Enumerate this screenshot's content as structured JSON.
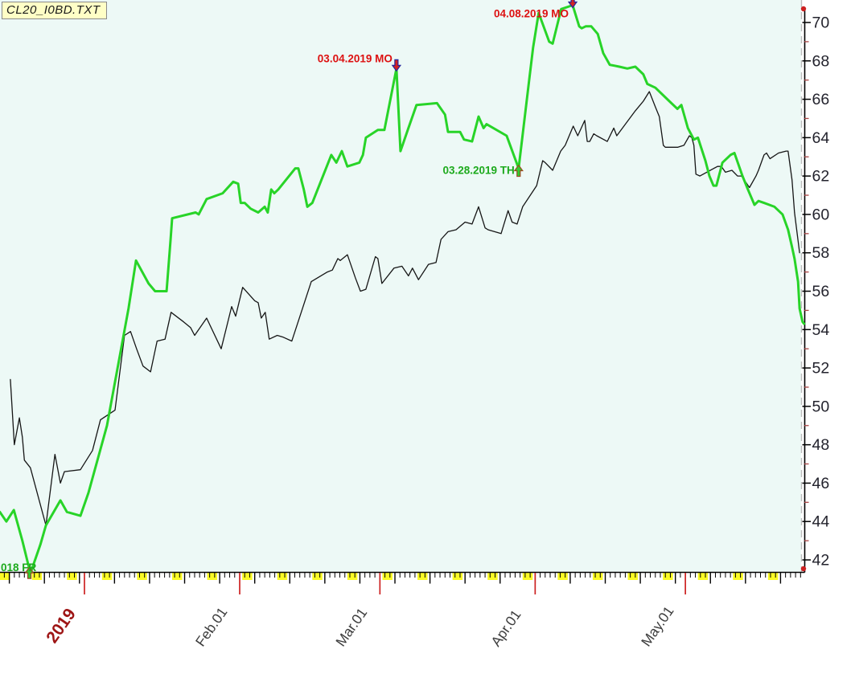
{
  "title": "CL20_I0BD.TXT",
  "colors": {
    "plot_bg": "#edf9f6",
    "outer_bg": "#ffffff",
    "seasonal_line": "#28d428",
    "price_line": "#161616",
    "axis": "#000000",
    "minor_tick": "#aa4444",
    "month_tick": "#cc2222",
    "weekend_block": "#fbfb25",
    "year_label": "#9e1515",
    "month_label": "#3d3d3d",
    "y_label": "#23232d",
    "peak_annotation": "#dd1111",
    "trough_annotation": "#1daa1d",
    "marker_peak_fill": "#d42222",
    "marker_peak_stroke": "#26269c",
    "marker_trough_fill": "#30cc30",
    "marker_trough_stroke": "#9a4a20",
    "corner_dot": "#cc2020",
    "dashed_guide": "#bdbdbd"
  },
  "chart_data": {
    "type": "line",
    "title": "CL20_I0BD.TXT",
    "xlabel": "",
    "ylabel": "",
    "x_unit": "days from 2019-01-01",
    "xlim": [
      -17,
      144
    ],
    "ylim": [
      41.3,
      71.2
    ],
    "grid": false,
    "legend": "none",
    "y_axis_side": "right",
    "y_major_ticks": [
      42,
      44,
      46,
      48,
      50,
      52,
      54,
      56,
      58,
      60,
      62,
      64,
      66,
      68,
      70
    ],
    "y_minor_ticks": [
      43,
      45,
      47,
      49,
      51,
      53,
      55,
      57,
      59,
      61,
      63,
      65,
      67,
      69
    ],
    "x_month_ticks": [
      {
        "label": "2019",
        "d": 0,
        "kind": "year"
      },
      {
        "label": "Feb.01",
        "d": 31,
        "kind": "month"
      },
      {
        "label": "Mar.01",
        "d": 59,
        "kind": "month"
      },
      {
        "label": "Apr.01",
        "d": 90,
        "kind": "month"
      },
      {
        "label": "May.01",
        "d": 120,
        "kind": "month"
      }
    ],
    "series": [
      {
        "name": "price-black",
        "color_key": "price_line",
        "width": 1.3,
        "points": [
          [
            -14.8,
            51.4
          ],
          [
            -14.0,
            48.0
          ],
          [
            -13.0,
            49.4
          ],
          [
            -12.4,
            48.4
          ],
          [
            -12.0,
            47.2
          ],
          [
            -10.8,
            46.8
          ],
          [
            -7.7,
            43.8
          ],
          [
            -5.9,
            47.5
          ],
          [
            -4.8,
            46.0
          ],
          [
            -4.0,
            46.6
          ],
          [
            -0.8,
            46.7
          ],
          [
            1.6,
            47.7
          ],
          [
            3.2,
            49.3
          ],
          [
            6.1,
            49.8
          ],
          [
            8.0,
            53.7
          ],
          [
            9.2,
            53.9
          ],
          [
            10.4,
            53.0
          ],
          [
            11.7,
            52.1
          ],
          [
            13.2,
            51.8
          ],
          [
            14.5,
            53.4
          ],
          [
            16.1,
            53.5
          ],
          [
            17.3,
            54.9
          ],
          [
            19.8,
            54.4
          ],
          [
            21.2,
            54.1
          ],
          [
            22.0,
            53.7
          ],
          [
            24.4,
            54.6
          ],
          [
            27.3,
            53.0
          ],
          [
            29.4,
            55.2
          ],
          [
            30.2,
            54.7
          ],
          [
            31.6,
            56.2
          ],
          [
            34.0,
            55.5
          ],
          [
            34.7,
            55.4
          ],
          [
            35.3,
            54.6
          ],
          [
            36.1,
            54.9
          ],
          [
            36.9,
            53.5
          ],
          [
            38.5,
            53.7
          ],
          [
            39.7,
            53.6
          ],
          [
            41.4,
            53.4
          ],
          [
            45.3,
            56.5
          ],
          [
            48.5,
            57.0
          ],
          [
            49.5,
            57.1
          ],
          [
            50.6,
            57.7
          ],
          [
            51.1,
            57.6
          ],
          [
            52.5,
            57.9
          ],
          [
            54.1,
            56.7
          ],
          [
            55.1,
            56.0
          ],
          [
            56.2,
            56.1
          ],
          [
            58.1,
            57.8
          ],
          [
            58.6,
            57.7
          ],
          [
            59.4,
            56.4
          ],
          [
            61.8,
            57.2
          ],
          [
            63.4,
            57.3
          ],
          [
            64.7,
            56.8
          ],
          [
            65.5,
            57.2
          ],
          [
            66.7,
            56.6
          ],
          [
            68.7,
            57.4
          ],
          [
            70.2,
            57.5
          ],
          [
            71.2,
            58.7
          ],
          [
            72.6,
            59.1
          ],
          [
            74.2,
            59.2
          ],
          [
            76.0,
            59.6
          ],
          [
            77.4,
            59.5
          ],
          [
            78.7,
            60.4
          ],
          [
            80.0,
            59.3
          ],
          [
            80.6,
            59.2
          ],
          [
            81.9,
            59.1
          ],
          [
            83.2,
            59.0
          ],
          [
            84.6,
            60.2
          ],
          [
            85.4,
            59.6
          ],
          [
            86.4,
            59.5
          ],
          [
            87.5,
            60.4
          ],
          [
            90.3,
            61.5
          ],
          [
            91.5,
            62.8
          ],
          [
            92.0,
            62.7
          ],
          [
            93.5,
            62.3
          ],
          [
            95.1,
            63.3
          ],
          [
            96.0,
            63.6
          ],
          [
            97.6,
            64.6
          ],
          [
            98.5,
            64.1
          ],
          [
            99.9,
            64.9
          ],
          [
            100.4,
            63.8
          ],
          [
            100.9,
            63.8
          ],
          [
            101.7,
            64.2
          ],
          [
            102.3,
            64.1
          ],
          [
            104.4,
            63.8
          ],
          [
            105.7,
            64.5
          ],
          [
            106.3,
            64.1
          ],
          [
            110.0,
            65.4
          ],
          [
            111.6,
            65.9
          ],
          [
            112.8,
            66.4
          ],
          [
            114.0,
            65.6
          ],
          [
            114.8,
            65.1
          ],
          [
            115.6,
            63.6
          ],
          [
            116.0,
            63.5
          ],
          [
            118.5,
            63.5
          ],
          [
            119.7,
            63.6
          ],
          [
            120.8,
            64.1
          ],
          [
            121.3,
            64.0
          ],
          [
            121.7,
            63.6
          ],
          [
            122.1,
            62.1
          ],
          [
            122.9,
            62.0
          ],
          [
            126.4,
            62.5
          ],
          [
            127.2,
            62.5
          ],
          [
            128.0,
            62.2
          ],
          [
            129.3,
            62.3
          ],
          [
            130.4,
            62.0
          ],
          [
            131.2,
            62.0
          ],
          [
            132.8,
            61.4
          ],
          [
            134.1,
            62.0
          ],
          [
            134.6,
            62.3
          ],
          [
            135.7,
            63.1
          ],
          [
            136.2,
            63.2
          ],
          [
            136.9,
            62.9
          ],
          [
            138.6,
            63.2
          ],
          [
            140.1,
            63.3
          ],
          [
            140.5,
            63.3
          ],
          [
            141.3,
            61.8
          ],
          [
            141.8,
            60.1
          ],
          [
            142.8,
            58.0
          ]
        ]
      },
      {
        "name": "seasonal-green",
        "color_key": "seasonal_line",
        "width": 3,
        "points": [
          [
            -16.9,
            44.5
          ],
          [
            -15.6,
            44.0
          ],
          [
            -14.1,
            44.6
          ],
          [
            -12.4,
            43.0
          ],
          [
            -10.8,
            41.3
          ],
          [
            -8.8,
            42.8
          ],
          [
            -7.7,
            43.8
          ],
          [
            -4.8,
            45.1
          ],
          [
            -3.5,
            44.5
          ],
          [
            -0.8,
            44.3
          ],
          [
            0.8,
            45.5
          ],
          [
            4.5,
            49.0
          ],
          [
            8.8,
            55.1
          ],
          [
            10.3,
            57.6
          ],
          [
            12.8,
            56.4
          ],
          [
            14.1,
            56.0
          ],
          [
            16.4,
            56.0
          ],
          [
            17.2,
            58.7
          ],
          [
            17.5,
            59.8
          ],
          [
            22.2,
            60.1
          ],
          [
            22.8,
            60.0
          ],
          [
            24.4,
            60.8
          ],
          [
            27.6,
            61.1
          ],
          [
            29.7,
            61.7
          ],
          [
            30.7,
            61.6
          ],
          [
            31.2,
            60.6
          ],
          [
            32.0,
            60.6
          ],
          [
            33.2,
            60.3
          ],
          [
            34.7,
            60.1
          ],
          [
            36.0,
            60.4
          ],
          [
            36.6,
            60.1
          ],
          [
            37.3,
            61.3
          ],
          [
            37.9,
            61.1
          ],
          [
            38.7,
            61.3
          ],
          [
            42.1,
            62.4
          ],
          [
            42.7,
            62.4
          ],
          [
            43.8,
            61.3
          ],
          [
            44.5,
            60.4
          ],
          [
            45.5,
            60.6
          ],
          [
            49.3,
            63.1
          ],
          [
            50.3,
            62.7
          ],
          [
            51.4,
            63.3
          ],
          [
            52.5,
            62.5
          ],
          [
            54.9,
            62.7
          ],
          [
            55.6,
            63.1
          ],
          [
            56.2,
            64.0
          ],
          [
            58.6,
            64.4
          ],
          [
            59.9,
            64.4
          ],
          [
            62.3,
            67.6
          ],
          [
            63.1,
            63.3
          ],
          [
            64.7,
            64.5
          ],
          [
            66.3,
            65.7
          ],
          [
            70.4,
            65.8
          ],
          [
            72.0,
            65.2
          ],
          [
            72.6,
            64.3
          ],
          [
            75.0,
            64.3
          ],
          [
            75.8,
            63.9
          ],
          [
            77.4,
            63.8
          ],
          [
            78.7,
            65.1
          ],
          [
            79.7,
            64.5
          ],
          [
            80.3,
            64.7
          ],
          [
            84.3,
            64.1
          ],
          [
            86.7,
            62.4
          ],
          [
            88.8,
            67.0
          ],
          [
            89.6,
            68.7
          ],
          [
            90.7,
            70.5
          ],
          [
            92.8,
            69.0
          ],
          [
            93.5,
            68.9
          ],
          [
            95.2,
            70.7
          ],
          [
            97.5,
            70.9
          ],
          [
            98.8,
            69.8
          ],
          [
            99.3,
            69.7
          ],
          [
            100.1,
            69.8
          ],
          [
            101.2,
            69.8
          ],
          [
            102.5,
            69.4
          ],
          [
            103.6,
            68.4
          ],
          [
            104.9,
            67.8
          ],
          [
            106.8,
            67.7
          ],
          [
            108.4,
            67.6
          ],
          [
            110.0,
            67.7
          ],
          [
            111.6,
            67.3
          ],
          [
            112.4,
            66.8
          ],
          [
            114.0,
            66.6
          ],
          [
            116.8,
            65.9
          ],
          [
            118.4,
            65.5
          ],
          [
            119.2,
            65.7
          ],
          [
            120.5,
            64.5
          ],
          [
            121.7,
            63.9
          ],
          [
            122.5,
            64.0
          ],
          [
            124.0,
            62.8
          ],
          [
            124.8,
            62.0
          ],
          [
            125.6,
            61.5
          ],
          [
            126.2,
            61.5
          ],
          [
            127.4,
            62.7
          ],
          [
            129.0,
            63.1
          ],
          [
            129.8,
            63.2
          ],
          [
            131.4,
            62.0
          ],
          [
            132.5,
            61.3
          ],
          [
            133.8,
            60.5
          ],
          [
            134.6,
            60.7
          ],
          [
            135.7,
            60.6
          ],
          [
            137.8,
            60.4
          ],
          [
            139.4,
            60.0
          ],
          [
            140.5,
            59.2
          ],
          [
            141.3,
            58.3
          ],
          [
            141.8,
            57.7
          ],
          [
            142.5,
            56.5
          ],
          [
            142.8,
            55.1
          ],
          [
            143.4,
            54.4
          ],
          [
            143.7,
            54.3
          ]
        ]
      }
    ],
    "markers": [
      {
        "label": "018 FR",
        "d": -11,
        "v": 41.45,
        "type": "trough",
        "label_anchor": "start",
        "label_x": 1,
        "label_y": 711
      },
      {
        "label": "03.04.2019 MO",
        "d": 62.3,
        "v": 67.6,
        "type": "peak"
      },
      {
        "label": "03.28.2019 TH",
        "d": 86.7,
        "v": 62.4,
        "type": "trough"
      },
      {
        "label": "04.08.2019 MO",
        "d": 97.5,
        "v": 70.9,
        "type": "peak"
      }
    ]
  }
}
